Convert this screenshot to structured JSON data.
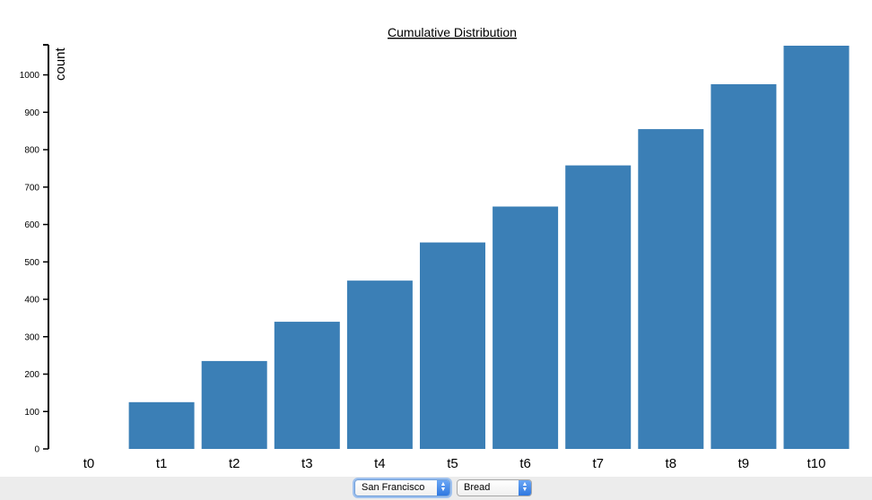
{
  "chart_data": {
    "type": "bar",
    "title": "Cumulative Distribution",
    "xlabel": "",
    "ylabel": "count",
    "categories": [
      "t0",
      "t1",
      "t2",
      "t3",
      "t4",
      "t5",
      "t6",
      "t7",
      "t8",
      "t9",
      "t10"
    ],
    "values": [
      0,
      125,
      235,
      340,
      450,
      552,
      648,
      758,
      855,
      975,
      1078
    ],
    "ylim": [
      0,
      1078
    ],
    "yticks": [
      "0",
      "100",
      "200",
      "300",
      "400",
      "500",
      "600",
      "700",
      "800",
      "900",
      "1000"
    ],
    "grid": false,
    "bar_color": "#3b7fb6"
  },
  "controls": {
    "city_select": {
      "selected": "San Francisco"
    },
    "product_select": {
      "selected": "Bread"
    }
  },
  "colors": {
    "bar": "#3b7fb6",
    "select_arrow": "#2f78e0",
    "controls_bar": "#ececec"
  }
}
